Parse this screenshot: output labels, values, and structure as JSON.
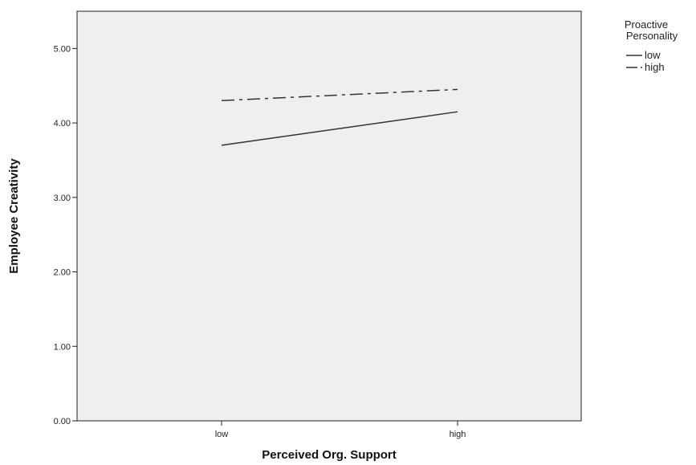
{
  "chart_data": {
    "type": "line",
    "xlabel": "Perceived Org. Support",
    "ylabel": "Employee Creativity",
    "categories": [
      "low",
      "high"
    ],
    "ylim": [
      0,
      5.5
    ],
    "yticks": [
      "0.00",
      "1.00",
      "2.00",
      "3.00",
      "4.00",
      "5.00"
    ],
    "grid": false,
    "legend_position": "top-right outside",
    "legend_title_lines": [
      "Proactive",
      "Personality"
    ],
    "series": [
      {
        "name": "low",
        "values": [
          3.7,
          4.15
        ],
        "style": "solid"
      },
      {
        "name": "high",
        "values": [
          4.3,
          4.45
        ],
        "style": "dash-dot"
      }
    ]
  },
  "colors": {
    "plot_background": "#efefef",
    "line": "#333333",
    "axis": "#222222"
  }
}
